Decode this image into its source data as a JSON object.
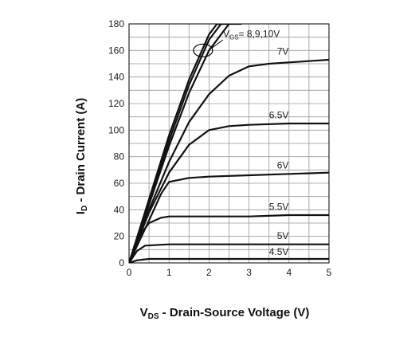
{
  "chart_data": {
    "type": "line",
    "title": "",
    "xlabel": {
      "main": "V",
      "sub": "DS",
      "rest": " - Drain-Source Voltage (V)"
    },
    "ylabel": {
      "main": "I",
      "sub": "D",
      "rest": " - Drain Current (A)"
    },
    "xlim": [
      0,
      5
    ],
    "ylim": [
      0,
      180
    ],
    "x_ticks": [
      0,
      1,
      2,
      3,
      4,
      5
    ],
    "x_tick_labels": [
      "0",
      "1",
      "2",
      "3",
      "4",
      "5"
    ],
    "y_ticks": [
      0,
      20,
      40,
      60,
      80,
      100,
      120,
      140,
      160,
      180
    ],
    "y_tick_labels": [
      "0",
      "20",
      "40",
      "60",
      "80",
      "100",
      "120",
      "140",
      "160",
      "180"
    ],
    "grid": true,
    "vgs_annotation": {
      "main": "V",
      "sub": "GS",
      "rest": "= 8,9,10V"
    },
    "series": [
      {
        "name": "10V",
        "x": [
          0,
          0.5,
          1.0,
          1.5,
          2.0,
          2.2,
          2.4
        ],
        "y": [
          0,
          48,
          96,
          138,
          172,
          180,
          180
        ]
      },
      {
        "name": "9V",
        "x": [
          0,
          0.5,
          1.0,
          1.5,
          2.0,
          2.3,
          2.5
        ],
        "y": [
          0,
          46,
          92,
          134,
          168,
          180,
          180
        ]
      },
      {
        "name": "8V",
        "x": [
          0,
          0.5,
          1.0,
          1.5,
          2.0,
          2.5,
          2.8
        ],
        "y": [
          0,
          44,
          88,
          128,
          160,
          180,
          180
        ]
      },
      {
        "name": "7V",
        "x": [
          0,
          0.5,
          1.0,
          1.5,
          2.0,
          2.5,
          3.0,
          3.5,
          4.0,
          4.5,
          5.0
        ],
        "y": [
          0,
          40,
          76,
          106,
          127,
          141,
          148,
          150,
          151,
          152,
          153
        ]
      },
      {
        "name": "6.5V",
        "x": [
          0,
          0.5,
          1.0,
          1.5,
          2.0,
          2.5,
          3.0,
          4.0,
          5.0
        ],
        "y": [
          0,
          38,
          68,
          89,
          100,
          103,
          104,
          105,
          105
        ]
      },
      {
        "name": "6V",
        "x": [
          0,
          0.5,
          0.8,
          1.0,
          1.5,
          2.0,
          3.0,
          4.0,
          5.0
        ],
        "y": [
          0,
          32,
          52,
          61,
          64,
          65,
          66,
          67,
          68
        ]
      },
      {
        "name": "5.5V",
        "x": [
          0,
          0.3,
          0.5,
          0.8,
          1.0,
          2.0,
          3.0,
          4.0,
          5.0
        ],
        "y": [
          0,
          22,
          30,
          34,
          35,
          35,
          35,
          36,
          36
        ]
      },
      {
        "name": "5V",
        "x": [
          0,
          0.2,
          0.4,
          1.0,
          2.0,
          3.0,
          4.0,
          5.0
        ],
        "y": [
          0,
          9,
          13,
          14,
          14,
          14,
          14,
          14
        ]
      },
      {
        "name": "4.5V",
        "x": [
          0,
          0.2,
          0.5,
          1.0,
          2.0,
          3.0,
          4.0,
          5.0
        ],
        "y": [
          0,
          2,
          3,
          3,
          3,
          3,
          3,
          3
        ]
      }
    ],
    "curve_labels": [
      {
        "text": "7V",
        "x": 3.7,
        "y": 157
      },
      {
        "text": "6.5V",
        "x": 3.5,
        "y": 109
      },
      {
        "text": "6V",
        "x": 3.7,
        "y": 71
      },
      {
        "text": "5.5V",
        "x": 3.5,
        "y": 40
      },
      {
        "text": "5V",
        "x": 3.7,
        "y": 18
      },
      {
        "text": "4.5V",
        "x": 3.5,
        "y": 6
      }
    ]
  }
}
